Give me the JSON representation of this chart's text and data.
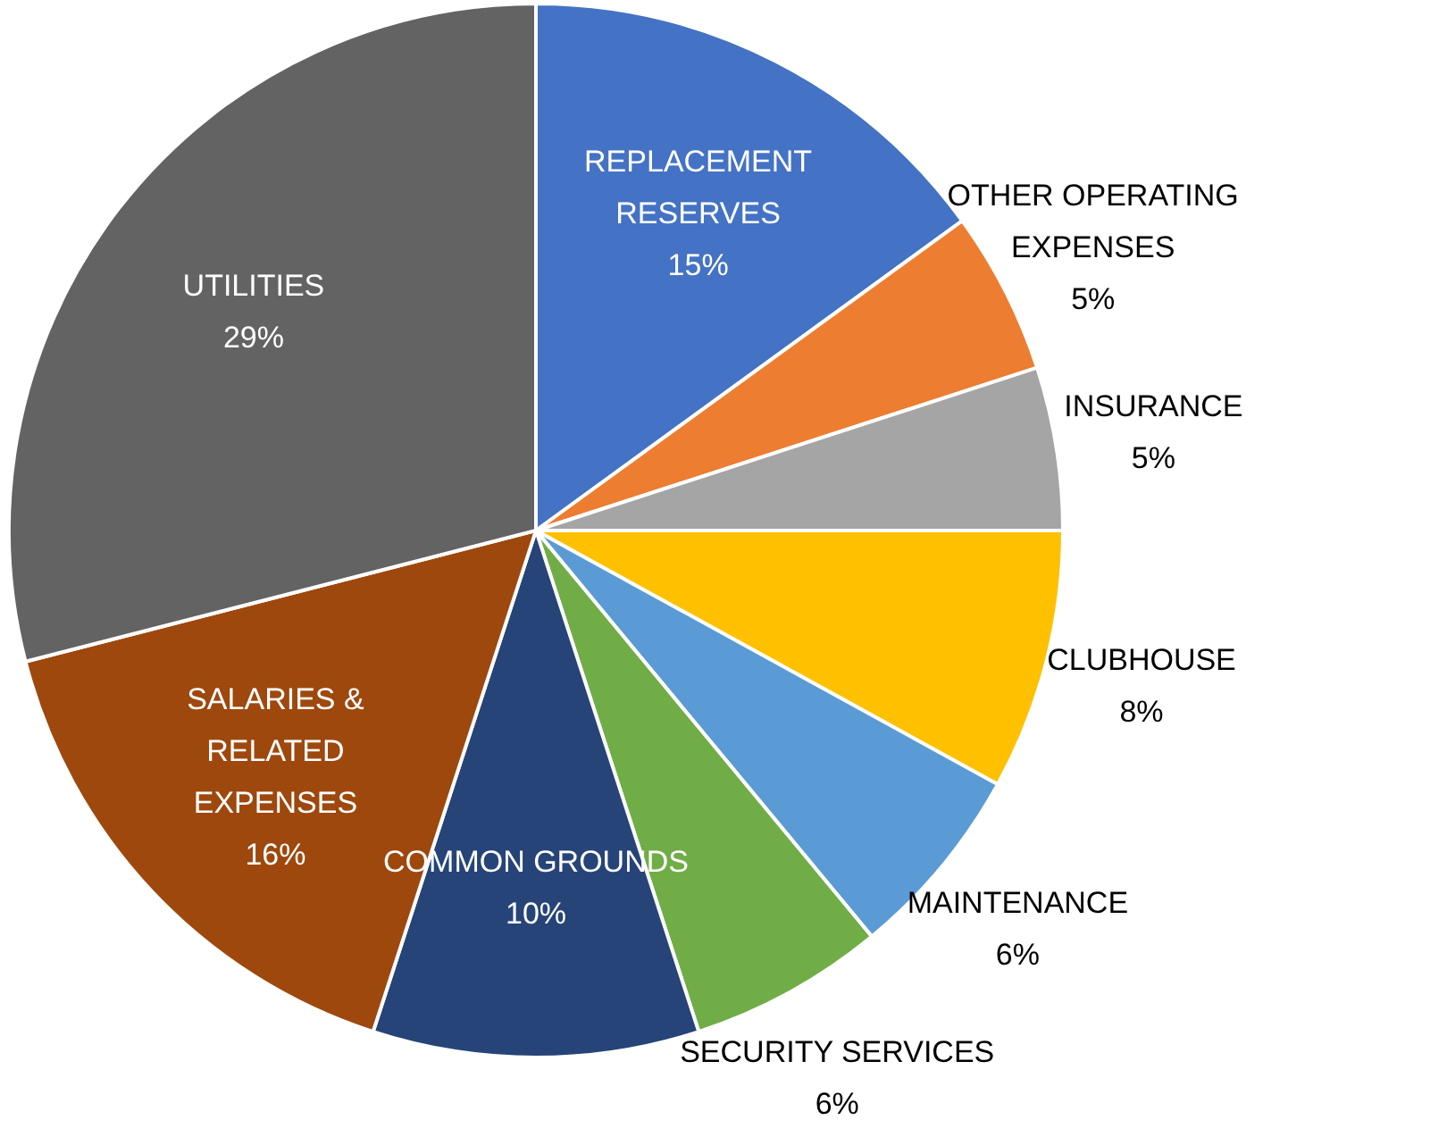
{
  "chart_data": {
    "type": "pie",
    "categories": [
      "REPLACEMENT RESERVES",
      "OTHER OPERATING EXPENSES",
      "INSURANCE",
      "CLUBHOUSE",
      "MAINTENANCE",
      "SECURITY SERVICES",
      "COMMON GROUNDS",
      "SALARIES & RELATED EXPENSES",
      "UTILITIES"
    ],
    "values": [
      15,
      5,
      5,
      8,
      6,
      6,
      10,
      16,
      29
    ],
    "value_labels": [
      "15%",
      "5%",
      "5%",
      "8%",
      "6%",
      "6%",
      "10%",
      "16%",
      "29%"
    ],
    "colors": [
      "#4472c4",
      "#ed7d31",
      "#a5a5a5",
      "#ffc000",
      "#5b9bd5",
      "#70ad47",
      "#264478",
      "#9e480e",
      "#636363"
    ]
  }
}
